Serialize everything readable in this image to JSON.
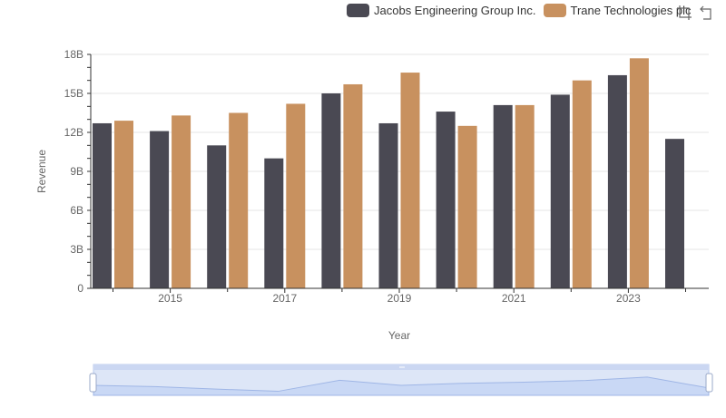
{
  "legend": {
    "series1": "Jacobs Engineering Group Inc.",
    "series2": "Trane Technologies plc"
  },
  "toolbar": {
    "zoom_icon": "zoom-box-icon",
    "restore_icon": "restore-icon"
  },
  "colors": {
    "series1": "#4a4953",
    "series2": "#c8915f",
    "grid": "#e6e6e6",
    "axis": "#333333",
    "zoom_fill": "#dde6f7",
    "zoom_border": "#b8c9ec"
  },
  "chart_data": {
    "type": "bar",
    "title": "",
    "xlabel": "Year",
    "ylabel": "Revenue",
    "ylim": [
      0,
      18
    ],
    "y_ticks": [
      "0",
      "3B",
      "6B",
      "9B",
      "12B",
      "15B",
      "18B"
    ],
    "x_tick_labels": [
      "2015",
      "2017",
      "2019",
      "2021",
      "2023"
    ],
    "categories": [
      "2014",
      "2015",
      "2016",
      "2017",
      "2018",
      "2019",
      "2020",
      "2021",
      "2022",
      "2023",
      "2024"
    ],
    "series": [
      {
        "name": "Jacobs Engineering Group Inc.",
        "values": [
          12.7,
          12.1,
          11.0,
          10.0,
          15.0,
          12.7,
          13.6,
          14.1,
          14.9,
          16.4,
          11.5
        ]
      },
      {
        "name": "Trane Technologies plc",
        "values": [
          12.9,
          13.3,
          13.5,
          14.2,
          15.7,
          16.6,
          12.5,
          14.1,
          16.0,
          17.7,
          null
        ]
      }
    ]
  }
}
